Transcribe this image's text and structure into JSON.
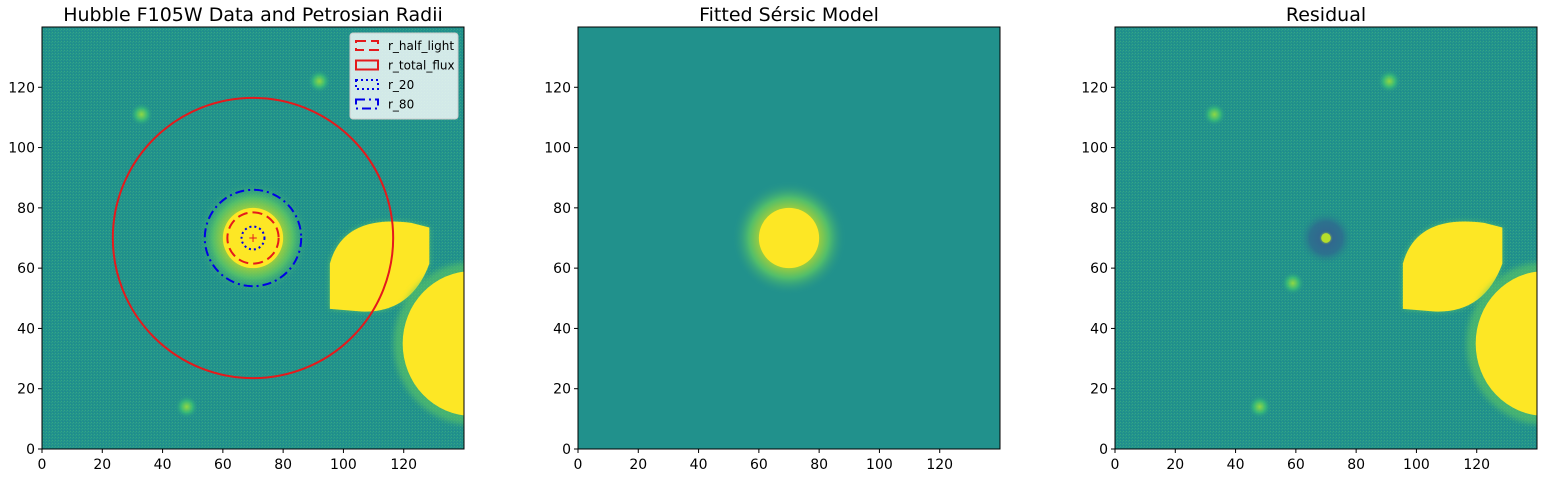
{
  "colors": {
    "background": "#21918c",
    "saturated": "#fde725",
    "red": "#e41a1c",
    "blue": "#0000e6"
  },
  "chart_data": [
    {
      "type": "heatmap",
      "title": "Hubble F105W Data and Petrosian Radii",
      "xlim": [
        0,
        140
      ],
      "ylim": [
        0,
        140
      ],
      "x_ticks": [
        "0",
        "20",
        "40",
        "60",
        "80",
        "100",
        "120"
      ],
      "y_ticks": [
        "0",
        "20",
        "40",
        "60",
        "80",
        "100",
        "120"
      ],
      "colormap": "viridis",
      "sources": [
        {
          "kind": "galaxy_core",
          "x": 70,
          "y": 70,
          "radius": 10
        },
        {
          "kind": "saturated_blob",
          "x": 112,
          "y": 60
        },
        {
          "kind": "saturated_blob",
          "x": 140,
          "y": 35
        },
        {
          "kind": "faint_source",
          "x": 33,
          "y": 111
        },
        {
          "kind": "faint_source",
          "x": 92,
          "y": 122
        },
        {
          "kind": "faint_source",
          "x": 48,
          "y": 14
        }
      ],
      "center": [
        70,
        70
      ],
      "radii": [
        {
          "label": "r_half_light",
          "value": 8.5,
          "color": "red",
          "style": "dashed"
        },
        {
          "label": "r_total_flux",
          "value": 46.5,
          "color": "red",
          "style": "solid"
        },
        {
          "label": "r_20",
          "value": 3.8,
          "color": "blue",
          "style": "dotted"
        },
        {
          "label": "r_80",
          "value": 16.0,
          "color": "blue",
          "style": "dashdot"
        }
      ],
      "legend_position": "top-right"
    },
    {
      "type": "heatmap",
      "title": "Fitted Sérsic Model",
      "xlim": [
        0,
        140
      ],
      "ylim": [
        0,
        140
      ],
      "x_ticks": [
        "0",
        "20",
        "40",
        "60",
        "80",
        "100",
        "120"
      ],
      "y_ticks": [
        "0",
        "20",
        "40",
        "60",
        "80",
        "100",
        "120"
      ],
      "colormap": "viridis",
      "sources": [
        {
          "kind": "model_core",
          "x": 70,
          "y": 70,
          "radius": 10
        }
      ]
    },
    {
      "type": "heatmap",
      "title": "Residual",
      "xlim": [
        0,
        140
      ],
      "ylim": [
        0,
        140
      ],
      "x_ticks": [
        "0",
        "20",
        "40",
        "60",
        "80",
        "100",
        "120"
      ],
      "y_ticks": [
        "0",
        "20",
        "40",
        "60",
        "80",
        "100",
        "120"
      ],
      "colormap": "viridis",
      "sources": [
        {
          "kind": "residual_ring",
          "x": 70,
          "y": 70
        },
        {
          "kind": "saturated_blob",
          "x": 112,
          "y": 60
        },
        {
          "kind": "saturated_blob",
          "x": 140,
          "y": 35
        },
        {
          "kind": "faint_source",
          "x": 33,
          "y": 111
        },
        {
          "kind": "faint_source",
          "x": 91,
          "y": 122
        },
        {
          "kind": "faint_source",
          "x": 48,
          "y": 14
        },
        {
          "kind": "faint_source",
          "x": 59,
          "y": 55
        }
      ]
    }
  ]
}
